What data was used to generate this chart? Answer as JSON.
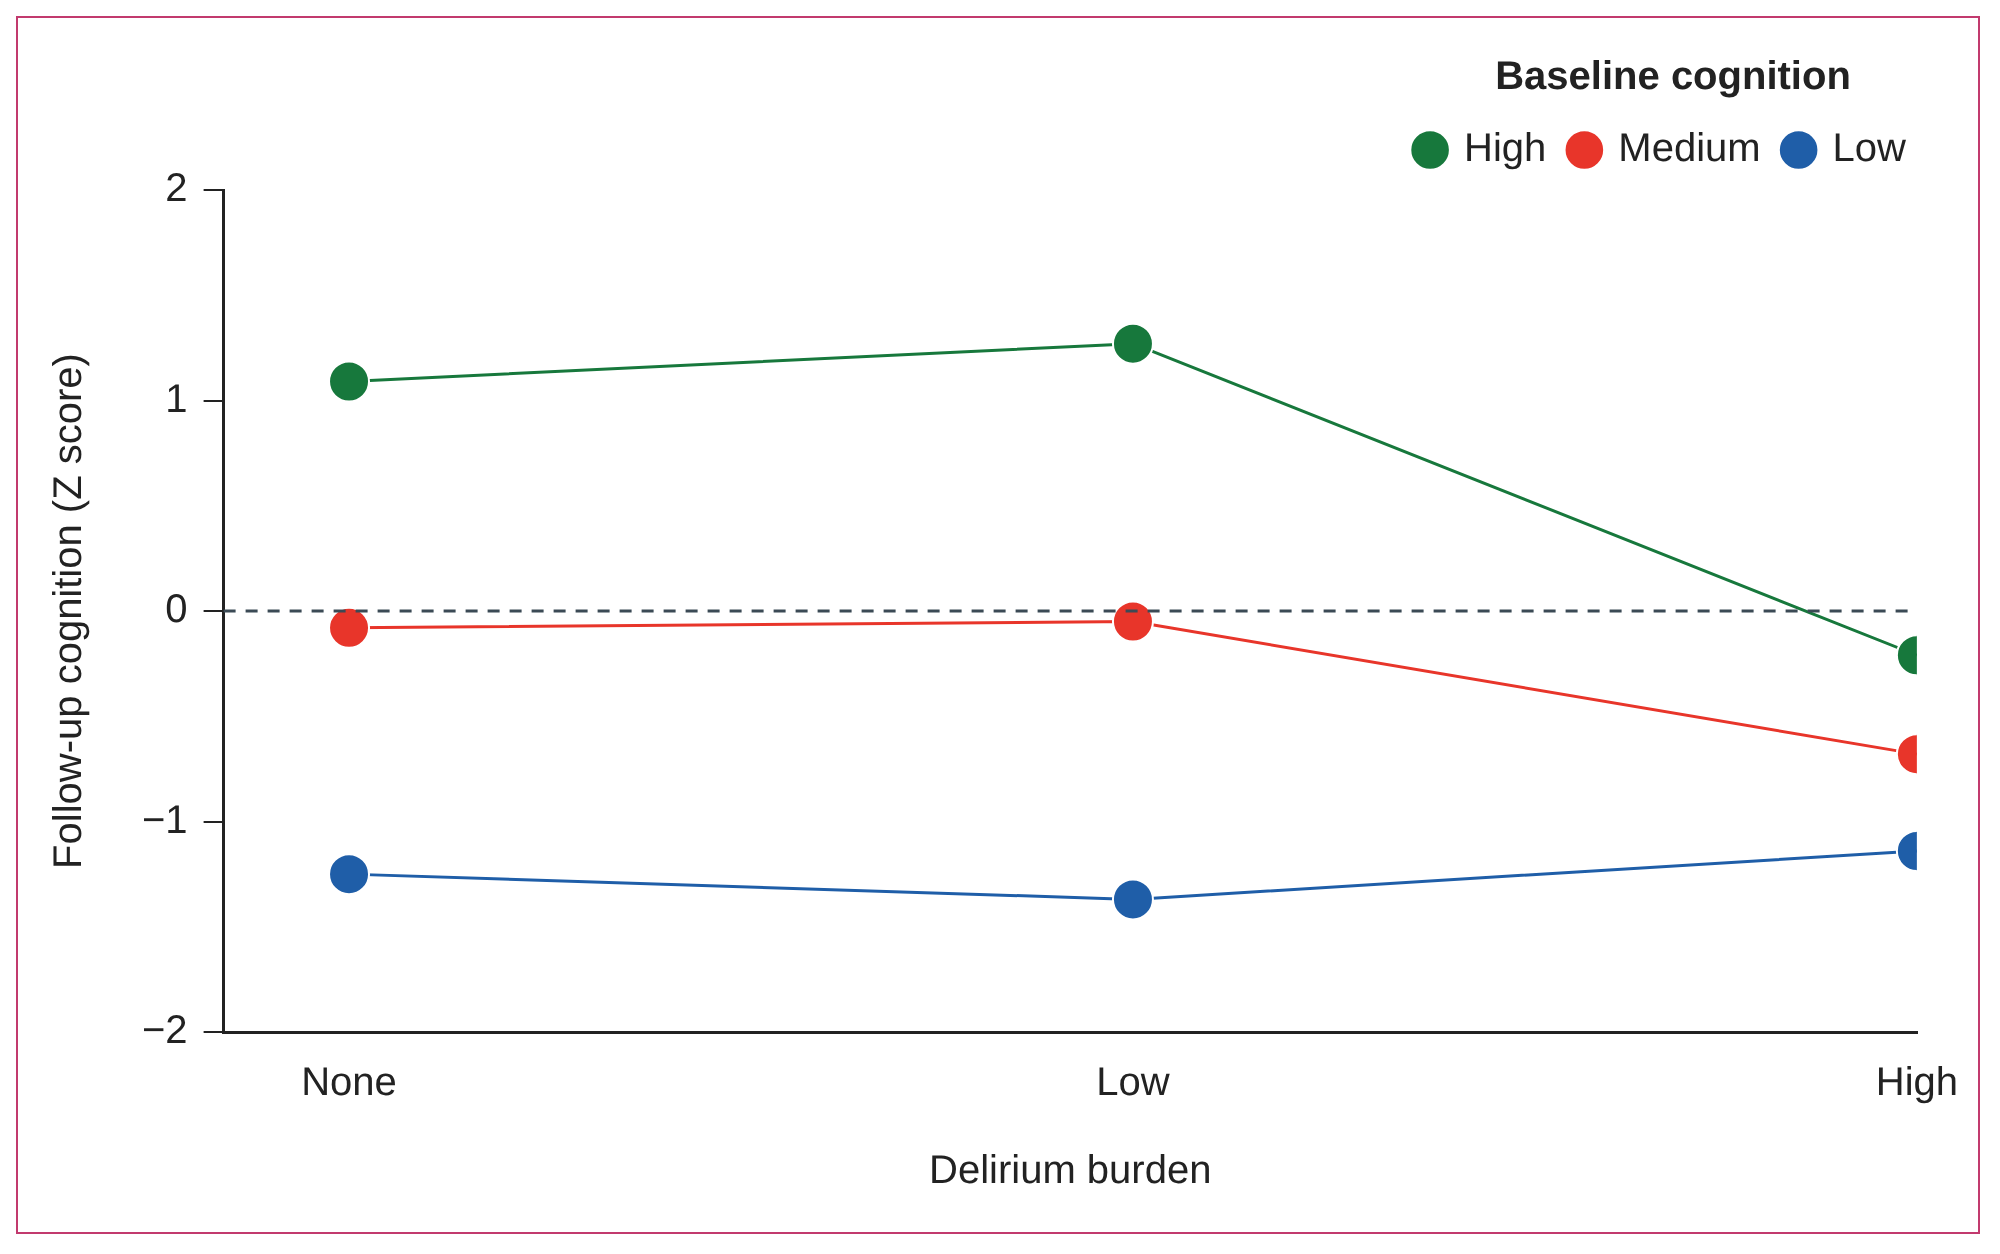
{
  "chart_data": {
    "type": "line",
    "xlabel": "Delirium burden",
    "ylabel": "Follow-up cognition (Z score)",
    "legend_title": "Baseline cognition",
    "categories": [
      "None",
      "Low",
      "High"
    ],
    "series": [
      {
        "name": "High",
        "color": "#17783c",
        "values": [
          1.09,
          1.27,
          -0.21
        ]
      },
      {
        "name": "Medium",
        "color": "#e8352a",
        "values": [
          -0.08,
          -0.05,
          -0.68
        ]
      },
      {
        "name": "Low",
        "color": "#1f5ea8",
        "values": [
          -1.25,
          -1.37,
          -1.14
        ]
      }
    ],
    "ylim": [
      -2,
      2
    ],
    "yticks": [
      2,
      1,
      0,
      -1,
      -2
    ],
    "grid": false,
    "legend": "top right",
    "marker": "circle",
    "line_style": "solid",
    "ref_lines": [
      {
        "axis": "y",
        "value": 0,
        "color": "#3b4a55",
        "line_style": "dashed"
      }
    ]
  }
}
